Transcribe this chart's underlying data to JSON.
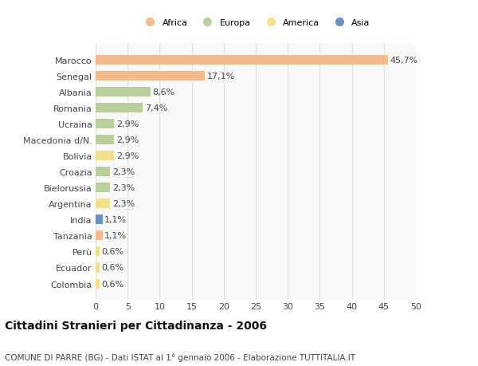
{
  "countries": [
    "Marocco",
    "Senegal",
    "Albania",
    "Romania",
    "Ucraina",
    "Macedonia d/N.",
    "Bolivia",
    "Croazia",
    "Bielorussia",
    "Argentina",
    "India",
    "Tanzania",
    "Perù",
    "Ecuador",
    "Colombia"
  ],
  "values": [
    45.7,
    17.1,
    8.6,
    7.4,
    2.9,
    2.9,
    2.9,
    2.3,
    2.3,
    2.3,
    1.1,
    1.1,
    0.6,
    0.6,
    0.6
  ],
  "labels": [
    "45,7%",
    "17,1%",
    "8,6%",
    "7,4%",
    "2,9%",
    "2,9%",
    "2,9%",
    "2,3%",
    "2,3%",
    "2,3%",
    "1,1%",
    "1,1%",
    "0,6%",
    "0,6%",
    "0,6%"
  ],
  "continents": [
    "Africa",
    "Africa",
    "Europa",
    "Europa",
    "Europa",
    "Europa",
    "America",
    "Europa",
    "Europa",
    "America",
    "Asia",
    "Africa",
    "America",
    "America",
    "America"
  ],
  "colors": {
    "Africa": "#F5BB8A",
    "Europa": "#BBCF9A",
    "America": "#F5E08A",
    "Asia": "#6B8FC9"
  },
  "legend_order": [
    "Africa",
    "Europa",
    "America",
    "Asia"
  ],
  "xlim": [
    0,
    50
  ],
  "xticks": [
    0,
    5,
    10,
    15,
    20,
    25,
    30,
    35,
    40,
    45,
    50
  ],
  "title": "Cittadini Stranieri per Cittadinanza - 2006",
  "subtitle": "COMUNE DI PARRE (BG) - Dati ISTAT al 1° gennaio 2006 - Elaborazione TUTTITALIA.IT",
  "bg_color": "#ffffff",
  "plot_bg_color": "#f9f9f9",
  "grid_color": "#e0e0e0",
  "bar_height": 0.6,
  "label_fontsize": 8,
  "tick_fontsize": 8,
  "title_fontsize": 10,
  "subtitle_fontsize": 7.5
}
